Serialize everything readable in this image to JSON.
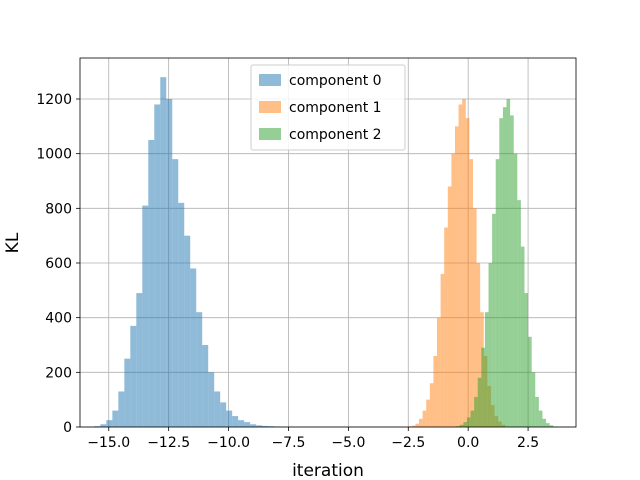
{
  "chart_data": {
    "type": "histogram",
    "title": "",
    "xlabel": "iteration",
    "ylabel": "KL",
    "xlim": [
      -16.2,
      4.5
    ],
    "ylim": [
      0,
      1350
    ],
    "xticks": [
      -15.0,
      -12.5,
      -10.0,
      -7.5,
      -5.0,
      -2.5,
      0.0,
      2.5
    ],
    "xtick_labels": [
      "−15.0",
      "−12.5",
      "−10.0",
      "−7.5",
      "−5.0",
      "−2.5",
      "0.0",
      "2.5"
    ],
    "yticks": [
      0,
      200,
      400,
      600,
      800,
      1000,
      1200
    ],
    "ytick_labels": [
      "0",
      "200",
      "400",
      "600",
      "800",
      "1000",
      "1200"
    ],
    "grid": true,
    "legend_position": "top-center",
    "alpha": 0.5,
    "series": [
      {
        "name": "component 0",
        "color": "#1f77b4",
        "bin_edges": [
          -15.6,
          -15.35,
          -15.1,
          -14.85,
          -14.6,
          -14.35,
          -14.1,
          -13.85,
          -13.6,
          -13.35,
          -13.1,
          -12.85,
          -12.6,
          -12.35,
          -12.1,
          -11.85,
          -11.6,
          -11.35,
          -11.1,
          -10.85,
          -10.6,
          -10.35,
          -10.1,
          -9.85,
          -9.6,
          -9.35,
          -9.1,
          -8.85,
          -8.6,
          -8.35,
          -8.1,
          -7.85,
          -7.6,
          -7.35,
          -7.1
        ],
        "counts": [
          3,
          10,
          25,
          60,
          130,
          250,
          370,
          490,
          810,
          1050,
          1180,
          1280,
          1200,
          980,
          820,
          700,
          580,
          420,
          300,
          200,
          130,
          90,
          60,
          40,
          25,
          18,
          10,
          6,
          4,
          3,
          2,
          1,
          1,
          0
        ]
      },
      {
        "name": "component 1",
        "color": "#ff7f0e",
        "bin_edges": [
          -2.5,
          -2.35,
          -2.2,
          -2.05,
          -1.9,
          -1.75,
          -1.6,
          -1.45,
          -1.3,
          -1.15,
          -1.0,
          -0.85,
          -0.7,
          -0.55,
          -0.4,
          -0.25,
          -0.1,
          0.05,
          0.2,
          0.35,
          0.5,
          0.65,
          0.8,
          0.95,
          1.1,
          1.25,
          1.4,
          1.55
        ],
        "counts": [
          2,
          5,
          12,
          30,
          60,
          100,
          160,
          260,
          400,
          560,
          730,
          880,
          1000,
          1100,
          1180,
          1200,
          1130,
          980,
          800,
          600,
          420,
          260,
          150,
          80,
          40,
          20,
          8
        ]
      },
      {
        "name": "component 2",
        "color": "#2ca02c",
        "bin_edges": [
          -0.5,
          -0.35,
          -0.2,
          -0.05,
          0.1,
          0.25,
          0.4,
          0.55,
          0.7,
          0.85,
          1.0,
          1.15,
          1.3,
          1.45,
          1.6,
          1.75,
          1.9,
          2.05,
          2.2,
          2.35,
          2.5,
          2.65,
          2.8,
          2.95,
          3.1,
          3.25,
          3.4,
          3.55,
          3.7
        ],
        "counts": [
          3,
          8,
          18,
          35,
          60,
          110,
          180,
          290,
          420,
          600,
          780,
          980,
          1130,
          1170,
          1200,
          1140,
          1000,
          830,
          660,
          490,
          330,
          200,
          110,
          60,
          30,
          14,
          6,
          2
        ]
      }
    ]
  }
}
